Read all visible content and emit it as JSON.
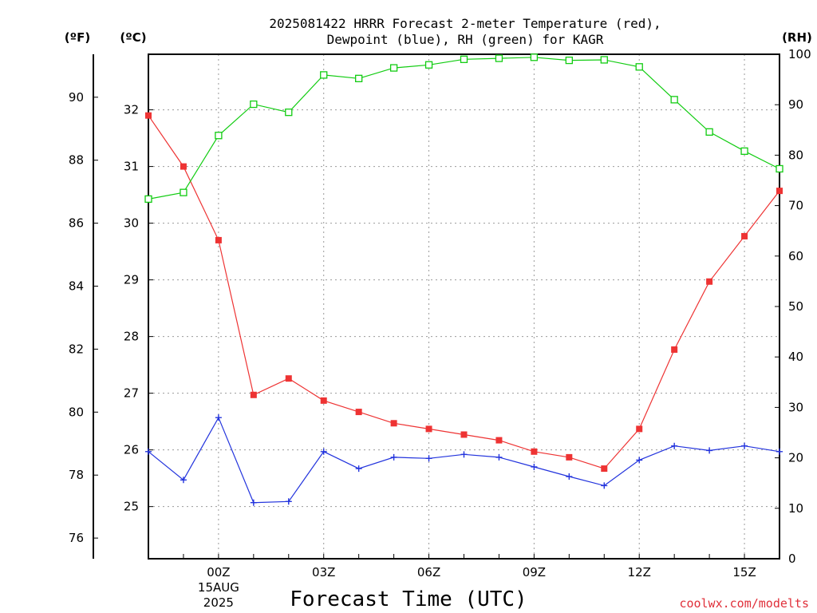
{
  "chart_data": {
    "type": "line",
    "title_line1": "2025081422 HRRR Forecast 2-meter Temperature (red),",
    "title_line2": "Dewpoint (blue), RH (green) for KAGR",
    "xlabel": "Forecast Time (UTC)",
    "credit": "coolwx.com/modelts",
    "units": {
      "f": "(ºF)",
      "c": "(ºC)",
      "rh": "(RH)"
    },
    "x_hours": [
      22,
      23,
      24,
      25,
      26,
      27,
      28,
      29,
      30,
      31,
      32,
      33,
      34,
      35,
      36,
      37,
      38,
      39,
      40
    ],
    "x_range": [
      22,
      40
    ],
    "x_ticks": [
      {
        "hour": 24,
        "label": "00Z",
        "sub1": "15AUG",
        "sub2": "2025"
      },
      {
        "hour": 27,
        "label": "03Z",
        "sub1": "",
        "sub2": ""
      },
      {
        "hour": 30,
        "label": "06Z",
        "sub1": "",
        "sub2": ""
      },
      {
        "hour": 33,
        "label": "09Z",
        "sub1": "",
        "sub2": ""
      },
      {
        "hour": 36,
        "label": "12Z",
        "sub1": "",
        "sub2": ""
      },
      {
        "hour": 39,
        "label": "15Z",
        "sub1": "",
        "sub2": ""
      }
    ],
    "c_range": [
      24.08,
      32.98
    ],
    "c_ticks": [
      "25",
      "26",
      "27",
      "28",
      "29",
      "30",
      "31",
      "32"
    ],
    "f_ticks": [
      "76",
      "78",
      "80",
      "82",
      "84",
      "86",
      "88",
      "90"
    ],
    "rh_range": [
      0,
      100
    ],
    "rh_ticks": [
      "0",
      "10",
      "20",
      "30",
      "40",
      "50",
      "60",
      "70",
      "80",
      "90",
      "100"
    ],
    "grid": "dotted",
    "series": [
      {
        "name": "Temperature",
        "unit": "C",
        "color": "#ee3333",
        "marker": "filled-square",
        "values": [
          31.9,
          31.0,
          29.7,
          26.97,
          27.26,
          26.87,
          26.67,
          26.47,
          26.37,
          26.27,
          26.17,
          25.97,
          25.87,
          25.67,
          26.37,
          27.77,
          28.97,
          29.77,
          30.57
        ]
      },
      {
        "name": "Dewpoint",
        "unit": "C",
        "color": "#2233dd",
        "marker": "plus",
        "values": [
          25.97,
          25.47,
          26.57,
          25.07,
          25.09,
          25.97,
          25.67,
          25.87,
          25.85,
          25.92,
          25.87,
          25.7,
          25.53,
          25.37,
          25.82,
          26.07,
          25.99,
          26.07,
          25.97
        ]
      },
      {
        "name": "RH",
        "unit": "%",
        "color": "#11cc11",
        "marker": "open-square",
        "values": [
          71.3,
          72.6,
          83.9,
          90.1,
          88.5,
          95.9,
          95.2,
          97.3,
          97.9,
          99.0,
          99.2,
          99.4,
          98.8,
          98.9,
          97.5,
          91.0,
          84.6,
          80.8,
          77.3
        ]
      }
    ]
  }
}
